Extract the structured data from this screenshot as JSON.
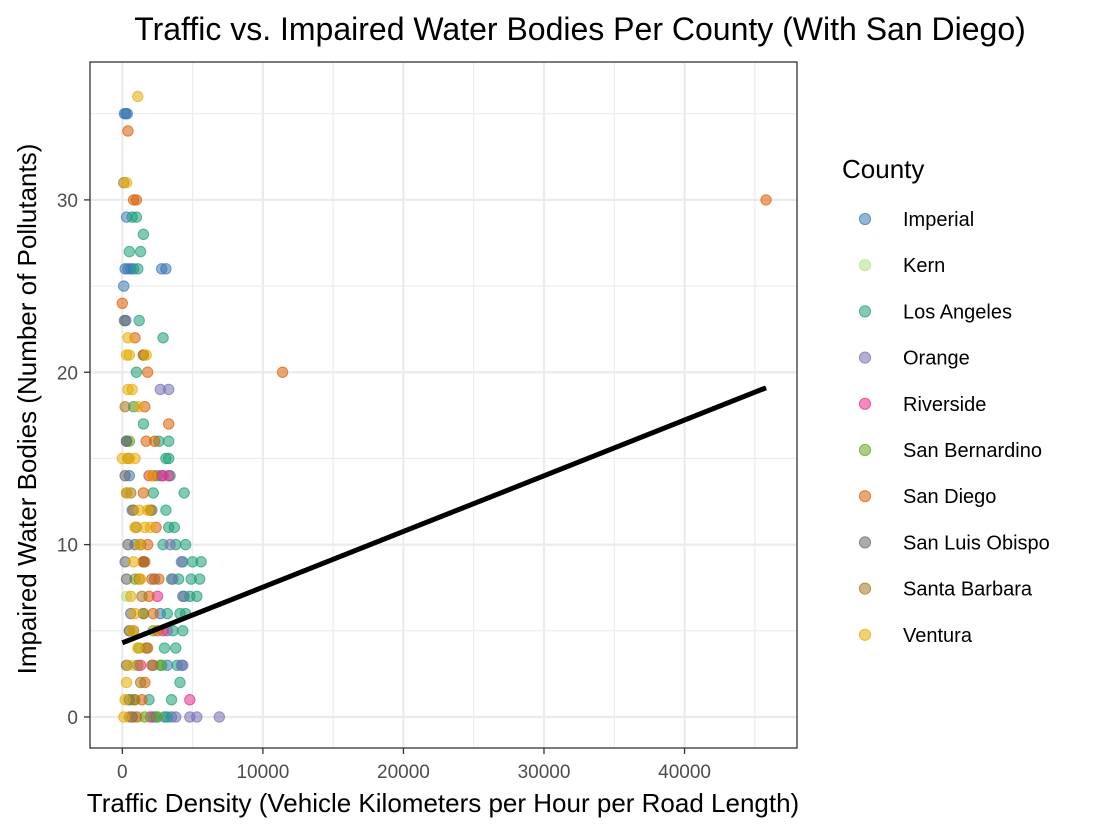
{
  "chart_data": {
    "type": "scatter",
    "title": "Traffic vs. Impaired Water Bodies Per County (With San Diego)",
    "xlabel": "Traffic Density (Vehicle Kilometers per Hour per Road Length)",
    "ylabel": "Impaired Water Bodies (Number of Pollutants)",
    "xlim": [
      -2300,
      48000
    ],
    "ylim": [
      -1.8,
      38
    ],
    "x_ticks": [
      0,
      10000,
      20000,
      30000,
      40000
    ],
    "x_tick_labels": [
      "0",
      "10000",
      "20000",
      "30000",
      "40000"
    ],
    "y_ticks": [
      0,
      10,
      20,
      30
    ],
    "y_tick_labels": [
      "0",
      "10",
      "20",
      "30"
    ],
    "grid": true,
    "legend_title": "County",
    "legend_position": "right",
    "series": [
      {
        "name": "Imperial",
        "color": "#3b78b5",
        "points": [
          [
            150,
            35
          ],
          [
            250,
            35
          ],
          [
            350,
            35
          ],
          [
            300,
            29
          ],
          [
            100,
            25
          ],
          [
            200,
            26
          ],
          [
            400,
            26
          ],
          [
            600,
            26
          ],
          [
            800,
            26
          ],
          [
            2800,
            26
          ],
          [
            3100,
            26
          ],
          [
            250,
            23
          ],
          [
            300,
            16
          ],
          [
            500,
            14
          ],
          [
            700,
            12
          ],
          [
            900,
            10
          ],
          [
            1500,
            9
          ],
          [
            2300,
            8
          ],
          [
            2700,
            6
          ],
          [
            2200,
            3
          ],
          [
            3200,
            3
          ],
          [
            4300,
            3
          ],
          [
            2200,
            0
          ],
          [
            3000,
            0
          ],
          [
            3500,
            0
          ]
        ]
      },
      {
        "name": "Kern",
        "color": "#b2df8a",
        "points": [
          [
            300,
            7
          ],
          [
            500,
            5
          ],
          [
            800,
            3
          ],
          [
            400,
            1
          ],
          [
            1200,
            0
          ]
        ]
      },
      {
        "name": "Los Angeles",
        "color": "#1b9e77",
        "points": [
          [
            500,
            27
          ],
          [
            1300,
            27
          ],
          [
            1500,
            28
          ],
          [
            700,
            29
          ],
          [
            1000,
            29
          ],
          [
            1100,
            26
          ],
          [
            1200,
            23
          ],
          [
            1500,
            21
          ],
          [
            2900,
            22
          ],
          [
            1000,
            20
          ],
          [
            800,
            18
          ],
          [
            1500,
            17
          ],
          [
            2600,
            16
          ],
          [
            3300,
            16
          ],
          [
            3100,
            15
          ],
          [
            3300,
            15
          ],
          [
            2500,
            14
          ],
          [
            3400,
            14
          ],
          [
            2200,
            13
          ],
          [
            4400,
            13
          ],
          [
            3100,
            12
          ],
          [
            2100,
            12
          ],
          [
            3300,
            11
          ],
          [
            3700,
            11
          ],
          [
            2900,
            10
          ],
          [
            3800,
            10
          ],
          [
            4500,
            10
          ],
          [
            4300,
            9
          ],
          [
            5000,
            9
          ],
          [
            5600,
            9
          ],
          [
            3500,
            8
          ],
          [
            4000,
            8
          ],
          [
            4900,
            8
          ],
          [
            5500,
            8
          ],
          [
            4400,
            7
          ],
          [
            4800,
            7
          ],
          [
            5300,
            7
          ],
          [
            3200,
            6
          ],
          [
            4100,
            6
          ],
          [
            4500,
            6
          ],
          [
            3600,
            5
          ],
          [
            4300,
            5
          ],
          [
            3000,
            4
          ],
          [
            3800,
            4
          ],
          [
            2800,
            3
          ],
          [
            3900,
            3
          ],
          [
            4100,
            2
          ],
          [
            3500,
            1
          ],
          [
            1900,
            1
          ],
          [
            2400,
            0
          ],
          [
            3200,
            0
          ]
        ]
      },
      {
        "name": "Orange",
        "color": "#7570b3",
        "points": [
          [
            2700,
            19
          ],
          [
            3300,
            19
          ],
          [
            2900,
            14
          ],
          [
            3400,
            10
          ],
          [
            4200,
            9
          ],
          [
            3600,
            8
          ],
          [
            4300,
            7
          ],
          [
            3200,
            5
          ],
          [
            4200,
            3
          ],
          [
            3800,
            0
          ],
          [
            4800,
            0
          ],
          [
            5300,
            0
          ],
          [
            6900,
            0
          ]
        ]
      },
      {
        "name": "Riverside",
        "color": "#e7298a",
        "points": [
          [
            1900,
            14
          ],
          [
            2800,
            14
          ],
          [
            3300,
            14
          ],
          [
            1500,
            9
          ],
          [
            2500,
            7
          ],
          [
            2900,
            5
          ],
          [
            1300,
            3
          ],
          [
            4800,
            1
          ],
          [
            2000,
            0
          ]
        ]
      },
      {
        "name": "San Bernardino",
        "color": "#66a61e",
        "points": [
          [
            500,
            16
          ],
          [
            900,
            8
          ],
          [
            1500,
            6
          ],
          [
            2200,
            5
          ],
          [
            1200,
            4
          ],
          [
            2700,
            3
          ],
          [
            800,
            1
          ],
          [
            1600,
            0
          ],
          [
            2500,
            0
          ]
        ]
      },
      {
        "name": "San Diego",
        "color": "#d95f02",
        "points": [
          [
            400,
            34
          ],
          [
            800,
            30
          ],
          [
            1000,
            30
          ],
          [
            0,
            24
          ],
          [
            900,
            22
          ],
          [
            1500,
            21
          ],
          [
            1800,
            20
          ],
          [
            1600,
            18
          ],
          [
            3300,
            17
          ],
          [
            1700,
            16
          ],
          [
            2300,
            16
          ],
          [
            2200,
            14
          ],
          [
            1500,
            13
          ],
          [
            2000,
            12
          ],
          [
            2400,
            11
          ],
          [
            1800,
            10
          ],
          [
            1500,
            9
          ],
          [
            2100,
            8
          ],
          [
            2600,
            8
          ],
          [
            1900,
            7
          ],
          [
            2200,
            6
          ],
          [
            2500,
            5
          ],
          [
            1700,
            4
          ],
          [
            2100,
            3
          ],
          [
            1600,
            2
          ],
          [
            1400,
            1
          ],
          [
            1000,
            0
          ],
          [
            11400,
            20
          ],
          [
            45800,
            30
          ]
        ]
      },
      {
        "name": "San Luis Obispo",
        "color": "#666666",
        "points": [
          [
            150,
            23
          ],
          [
            300,
            16
          ],
          [
            200,
            14
          ],
          [
            300,
            13
          ],
          [
            400,
            10
          ],
          [
            200,
            9
          ],
          [
            300,
            8
          ],
          [
            600,
            6
          ],
          [
            500,
            5
          ],
          [
            300,
            3
          ],
          [
            500,
            1
          ],
          [
            700,
            0
          ]
        ]
      },
      {
        "name": "Santa Barbara",
        "color": "#a6761d",
        "points": [
          [
            100,
            31
          ],
          [
            200,
            18
          ],
          [
            400,
            15
          ],
          [
            600,
            13
          ],
          [
            800,
            12
          ],
          [
            1000,
            11
          ],
          [
            1300,
            10
          ],
          [
            1600,
            9
          ],
          [
            1200,
            8
          ],
          [
            1400,
            7
          ],
          [
            1500,
            6
          ],
          [
            800,
            5
          ],
          [
            1800,
            4
          ],
          [
            1100,
            3
          ],
          [
            1300,
            2
          ],
          [
            900,
            1
          ],
          [
            500,
            0
          ]
        ]
      },
      {
        "name": "Ventura",
        "color": "#e6ab02",
        "points": [
          [
            1100,
            36
          ],
          [
            300,
            31
          ],
          [
            400,
            22
          ],
          [
            300,
            21
          ],
          [
            500,
            21
          ],
          [
            1700,
            21
          ],
          [
            400,
            19
          ],
          [
            700,
            19
          ],
          [
            1100,
            18
          ],
          [
            0,
            15
          ],
          [
            500,
            15
          ],
          [
            900,
            15
          ],
          [
            2000,
            14
          ],
          [
            300,
            13
          ],
          [
            1200,
            12
          ],
          [
            1800,
            12
          ],
          [
            900,
            11
          ],
          [
            1600,
            11
          ],
          [
            2000,
            11
          ],
          [
            1200,
            10
          ],
          [
            800,
            9
          ],
          [
            1300,
            8
          ],
          [
            600,
            7
          ],
          [
            900,
            6
          ],
          [
            700,
            5
          ],
          [
            1100,
            4
          ],
          [
            400,
            3
          ],
          [
            300,
            2
          ],
          [
            200,
            1
          ],
          [
            100,
            0
          ]
        ]
      }
    ],
    "trend_line": {
      "color": "#000000",
      "points": [
        [
          0,
          4.3
        ],
        [
          45800,
          19.1
        ]
      ]
    }
  }
}
